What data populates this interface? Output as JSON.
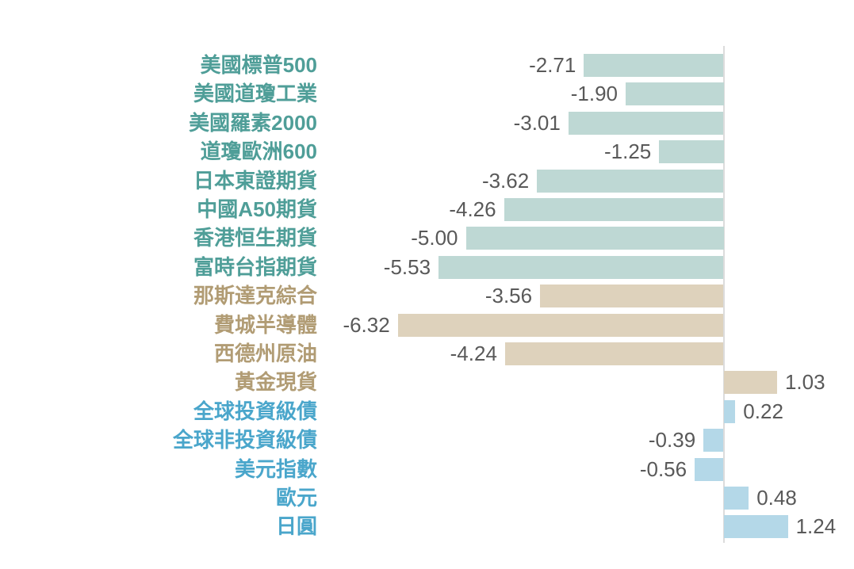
{
  "chart_data": {
    "type": "bar",
    "orientation": "horizontal",
    "title": "",
    "xlabel": "",
    "ylabel": "",
    "legend": "none",
    "grid": "off",
    "axis_ticks_visible": false,
    "zero_line": true,
    "zero_line_color": "#dcdcdc",
    "value_label_color": "#595959",
    "xlim": [
      -7,
      2.5
    ],
    "categories": [
      "美國標普500",
      "美國道瓊工業",
      "美國羅素2000",
      "道瓊歐洲600",
      "日本東證期貨",
      "中國A50期貨",
      "香港恒生期貨",
      "富時台指期貨",
      "那斯達克綜合",
      "費城半導體",
      "西德州原油",
      "黃金現貨",
      "全球投資級債",
      "全球非投資級債",
      "美元指數",
      "歐元",
      "日圓"
    ],
    "values": [
      -2.71,
      -1.9,
      -3.01,
      -1.25,
      -3.62,
      -4.26,
      -5.0,
      -5.53,
      -3.56,
      -6.32,
      -4.24,
      1.03,
      0.22,
      -0.39,
      -0.56,
      0.48,
      1.24
    ],
    "rows": [
      {
        "label": "美國標普500",
        "value": -2.71,
        "display": "-2.71",
        "group": "teal"
      },
      {
        "label": "美國道瓊工業",
        "value": -1.9,
        "display": "-1.90",
        "group": "teal"
      },
      {
        "label": "美國羅素2000",
        "value": -3.01,
        "display": "-3.01",
        "group": "teal"
      },
      {
        "label": "道瓊歐洲600",
        "value": -1.25,
        "display": "-1.25",
        "group": "teal"
      },
      {
        "label": "日本東證期貨",
        "value": -3.62,
        "display": "-3.62",
        "group": "teal"
      },
      {
        "label": "中國A50期貨",
        "value": -4.26,
        "display": "-4.26",
        "group": "teal"
      },
      {
        "label": "香港恒生期貨",
        "value": -5.0,
        "display": "-5.00",
        "group": "teal"
      },
      {
        "label": "富時台指期貨",
        "value": -5.53,
        "display": "-5.53",
        "group": "teal"
      },
      {
        "label": "那斯達克綜合",
        "value": -3.56,
        "display": "-3.56",
        "group": "tan"
      },
      {
        "label": "費城半導體",
        "value": -6.32,
        "display": "-6.32",
        "group": "tan"
      },
      {
        "label": "西德州原油",
        "value": -4.24,
        "display": "-4.24",
        "group": "tan"
      },
      {
        "label": "黃金現貨",
        "value": 1.03,
        "display": "1.03",
        "group": "tan"
      },
      {
        "label": "全球投資級債",
        "value": 0.22,
        "display": "0.22",
        "group": "blue"
      },
      {
        "label": "全球非投資級債",
        "value": -0.39,
        "display": "-0.39",
        "group": "blue"
      },
      {
        "label": "美元指數",
        "value": -0.56,
        "display": "-0.56",
        "group": "blue"
      },
      {
        "label": "歐元",
        "value": 0.48,
        "display": "0.48",
        "group": "blue"
      },
      {
        "label": "日圓",
        "value": 1.24,
        "display": "1.24",
        "group": "blue"
      }
    ],
    "groups": {
      "teal": {
        "bar_color": "#bed8d4",
        "label_color": "#4f9e98"
      },
      "tan": {
        "bar_color": "#ded2bc",
        "label_color": "#b19c74"
      },
      "blue": {
        "bar_color": "#b4d8e8",
        "label_color": "#4aa6cb"
      }
    }
  }
}
